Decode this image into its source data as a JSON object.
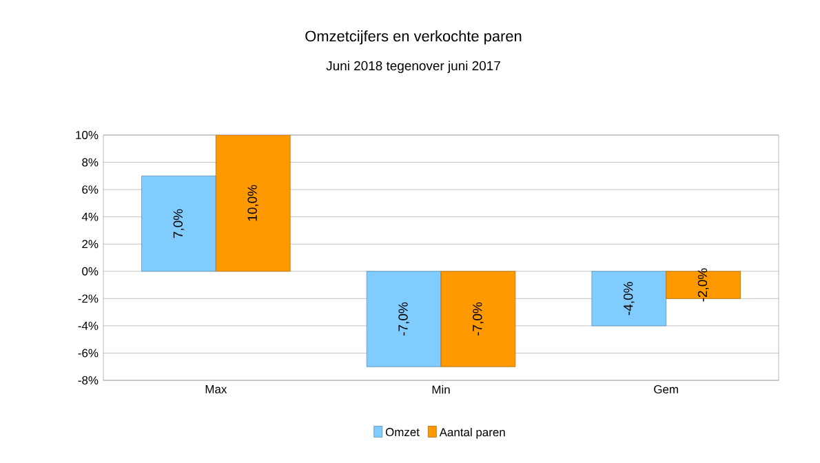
{
  "chart_data": {
    "type": "bar",
    "title": "Omzetcijfers en verkochte paren",
    "subtitle": "Juni 2018 tegenover juni 2017",
    "categories": [
      "Max",
      "Min",
      "Gem"
    ],
    "series": [
      {
        "name": "Omzet",
        "color": "#80ccff",
        "values": [
          7,
          -7,
          -4
        ],
        "value_labels": [
          "7,0%",
          "-7,0%",
          "-4,0%"
        ]
      },
      {
        "name": "Aantal paren",
        "color": "#ff9900",
        "values": [
          10,
          -7,
          -2
        ],
        "value_labels": [
          "10,0%",
          "-7,0%",
          "-2,0%"
        ]
      }
    ],
    "ylim": [
      -8,
      10
    ],
    "yticks": [
      {
        "value": -8,
        "label": "-8%"
      },
      {
        "value": -6,
        "label": "-6%"
      },
      {
        "value": -4,
        "label": "-4%"
      },
      {
        "value": -2,
        "label": "-2%"
      },
      {
        "value": 0,
        "label": "0%"
      },
      {
        "value": 2,
        "label": "2%"
      },
      {
        "value": 4,
        "label": "4%"
      },
      {
        "value": 6,
        "label": "6%"
      },
      {
        "value": 8,
        "label": "8%"
      },
      {
        "value": 10,
        "label": "10%"
      }
    ],
    "grid": "y",
    "legend": "bottom"
  }
}
